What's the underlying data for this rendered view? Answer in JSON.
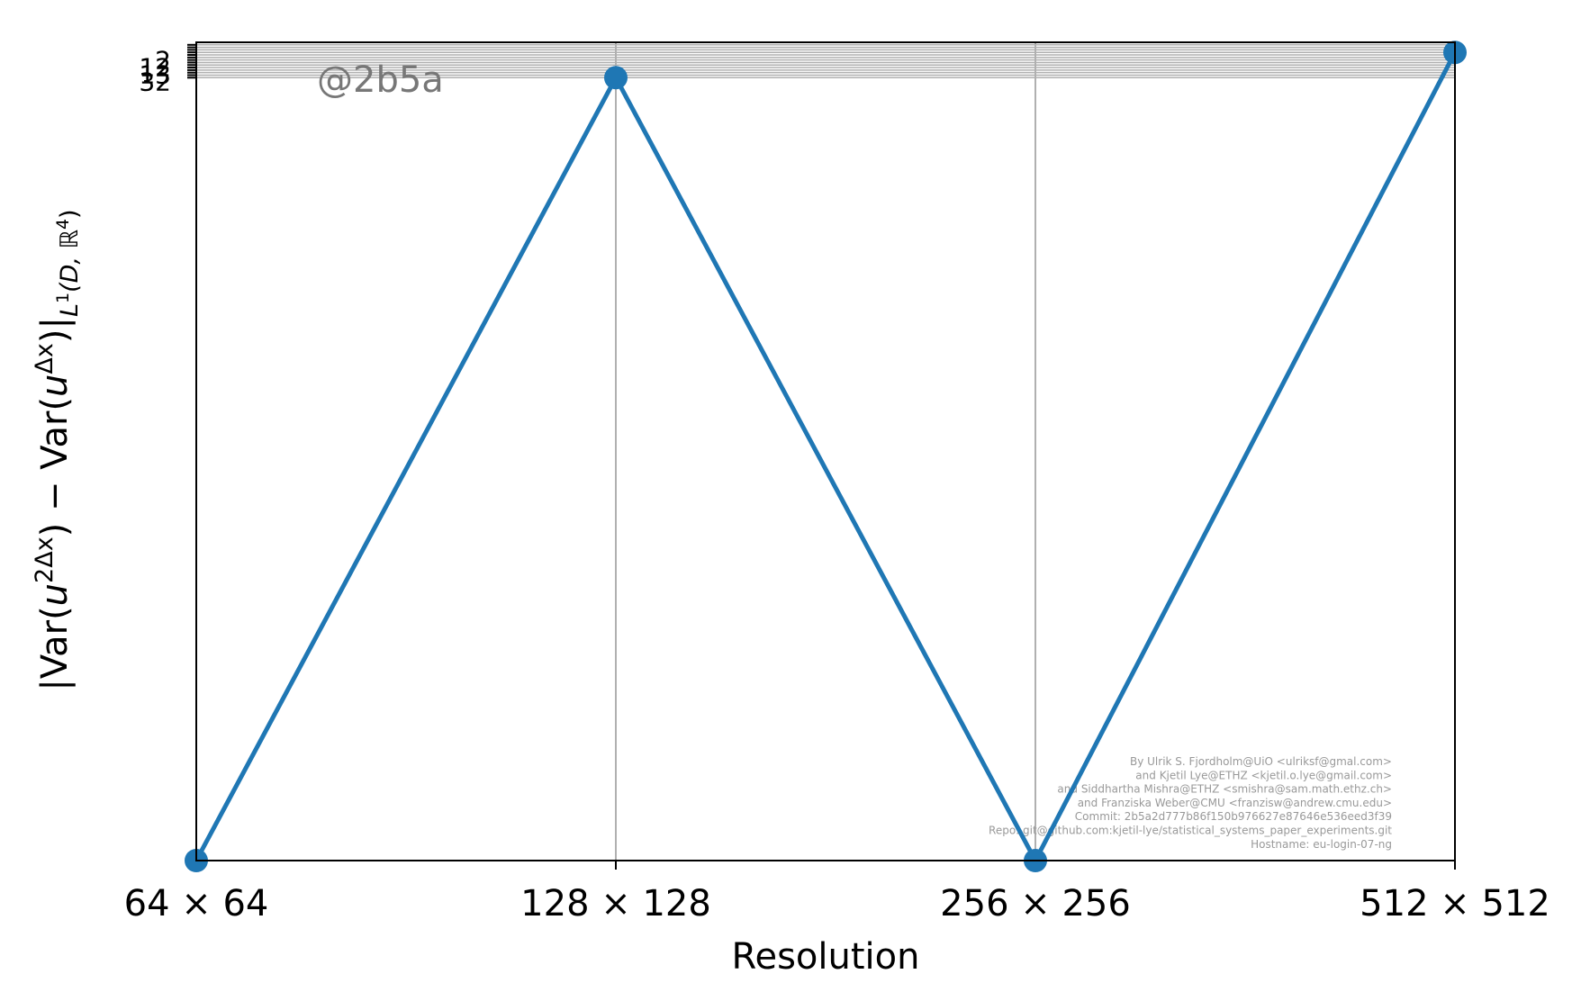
{
  "chart_data": {
    "type": "line",
    "title": "",
    "xlabel": "Resolution",
    "ylabel": "|Var(u^{2Δx}) − Var(u^{Δx})|_{L^1(D,ℝ^4)}",
    "ylabel_parts": {
      "main_a": "|Var(",
      "u1": "u",
      "sup1": "2Δx",
      "main_b": ") − Var(",
      "u2": "u",
      "sup2": "Δx",
      "main_c": ")|",
      "sub_a": "L",
      "sub_sup": "1",
      "sub_b": "(D, ℝ",
      "sub_sup2": "4",
      "sub_c": ")"
    },
    "categories": [
      "64 × 64",
      "128 × 128",
      "256 × 256",
      "512 × 512"
    ],
    "x_scale": "log2",
    "series": [
      {
        "values": [
          0,
          31,
          0,
          32
        ]
      }
    ],
    "series_color": "#1f77b4",
    "ylim": [
      0,
      32.4
    ],
    "y_tick_labels": [
      "2",
      "12",
      "13",
      "32"
    ],
    "grid": true,
    "annotation": "@2b5a",
    "watermark_lines": [
      "By Ulrik S. Fjordholm@UiO <ulriksf@gmal.com>",
      "and Kjetil Lye@ETHZ <kjetil.o.lye@gmail.com>",
      "and Siddhartha Mishra@ETHZ <smishra@sam.math.ethz.ch>",
      "and Franziska Weber@CMU <franzisw@andrew.cmu.edu>",
      "Commit: 2b5a2d777b86f150b976627e87646e536eed3f39",
      "Repo: git@github.com:kjetil-lye/statistical_systems_paper_experiments.git",
      "Hostname: eu-login-07-ng"
    ]
  }
}
